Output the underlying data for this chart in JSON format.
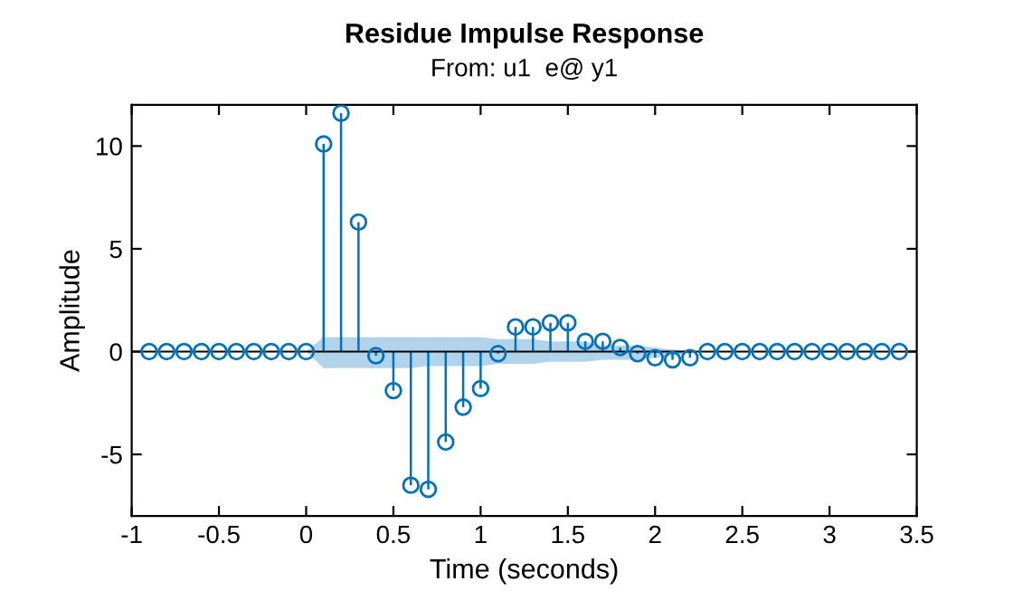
{
  "chart_data": {
    "type": "lollipop",
    "title": "Residue Impulse Response",
    "subtitle": "From: u1  e@ y1",
    "xlabel": "Time (seconds)",
    "ylabel": "Amplitude",
    "x": [
      -0.9,
      -0.8,
      -0.7,
      -0.6,
      -0.5,
      -0.4,
      -0.3,
      -0.2,
      -0.1,
      0,
      0.1,
      0.2,
      0.3,
      0.4,
      0.5,
      0.6,
      0.7,
      0.8,
      0.9,
      1.0,
      1.1,
      1.2,
      1.3,
      1.4,
      1.5,
      1.6,
      1.7,
      1.8,
      1.9,
      2.0,
      2.1,
      2.2,
      2.3,
      2.4,
      2.5,
      2.6,
      2.7,
      2.8,
      2.9,
      3.0,
      3.1,
      3.2,
      3.3,
      3.4
    ],
    "series": [
      {
        "color": "#0072bd",
        "values": [
          0,
          0,
          0,
          0,
          0,
          0,
          0,
          0,
          0,
          0,
          10.1,
          11.6,
          6.3,
          -0.2,
          -1.9,
          -6.5,
          -6.7,
          -4.4,
          -2.7,
          -1.8,
          -0.1,
          1.2,
          1.2,
          1.4,
          1.4,
          0.5,
          0.5,
          0.2,
          -0.1,
          -0.3,
          -0.4,
          -0.3,
          0,
          0,
          0,
          0,
          0,
          0,
          0,
          0,
          0,
          0,
          0,
          0
        ],
        "lower": [
          null,
          null,
          null,
          null,
          null,
          null,
          null,
          null,
          null,
          0,
          -0.8,
          -0.8,
          -0.8,
          -0.8,
          -0.8,
          -0.8,
          -0.7,
          -0.7,
          -0.7,
          -0.7,
          -0.6,
          -0.6,
          -0.6,
          -0.5,
          -0.5,
          -0.5,
          -0.4,
          -0.4,
          -0.4,
          -0.3,
          -0.2,
          -0.1,
          null,
          null,
          null,
          null,
          null,
          null,
          null,
          null,
          null,
          null,
          null,
          null
        ],
        "upper": [
          null,
          null,
          null,
          null,
          null,
          null,
          null,
          null,
          null,
          0,
          0.7,
          0.7,
          0.7,
          0.7,
          0.7,
          0.7,
          0.7,
          0.7,
          0.7,
          0.7,
          0.6,
          0.6,
          0.6,
          0.5,
          0.5,
          0.5,
          0.3,
          0.3,
          0.3,
          0.2,
          0.1,
          0.05,
          null,
          null,
          null,
          null,
          null,
          null,
          null,
          null,
          null,
          null,
          null,
          null
        ]
      }
    ],
    "xlim": [
      -1,
      3.5
    ],
    "xticks": [
      -1,
      -0.5,
      0,
      0.5,
      1,
      1.5,
      2,
      2.5,
      3,
      3.5
    ],
    "ylim": [
      -8,
      12
    ],
    "yticks": [
      -5,
      0,
      5,
      10
    ],
    "ref_lines": [
      {
        "axis": "y",
        "value": 0,
        "color": "#000000"
      }
    ],
    "marker": "circle",
    "legend": false
  }
}
